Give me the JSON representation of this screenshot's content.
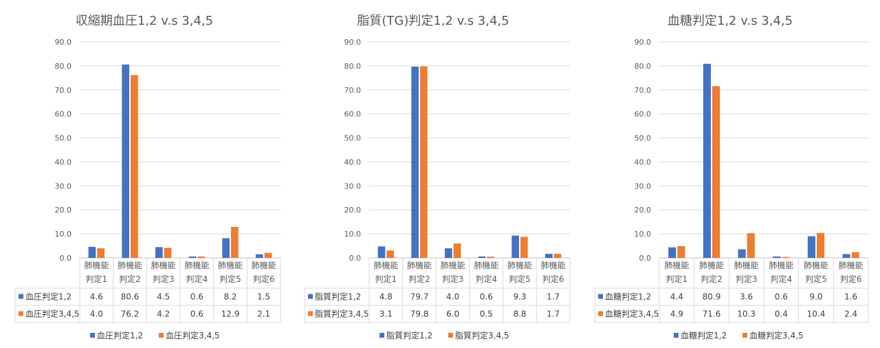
{
  "colors": {
    "series1": "#4472C4",
    "series2": "#ED7D31",
    "grid": "#D9D9D9",
    "text": "#595959"
  },
  "chart_data": [
    {
      "type": "bar",
      "title": "収縮期血圧1,2 v.s 3,4,5",
      "categories": [
        [
          "肺機能",
          "判定1"
        ],
        [
          "肺機能",
          "判定2"
        ],
        [
          "肺機能",
          "判定3"
        ],
        [
          "肺機能",
          "判定4"
        ],
        [
          "肺機能",
          "判定5"
        ],
        [
          "肺機能",
          "判定6"
        ]
      ],
      "ylim": [
        0,
        90
      ],
      "yticks": [
        "0.0",
        "10.0",
        "20.0",
        "30.0",
        "40.0",
        "50.0",
        "60.0",
        "70.0",
        "80.0",
        "90.0"
      ],
      "grid": true,
      "legend": "bottom",
      "data_table": true,
      "series": [
        {
          "name": "血圧判定1,2",
          "values": [
            4.6,
            80.6,
            4.5,
            0.6,
            8.2,
            1.5
          ],
          "labels": [
            "4.6",
            "80.6",
            "4.5",
            "0.6",
            "8.2",
            "1.5"
          ]
        },
        {
          "name": "血圧判定3,4,5",
          "values": [
            4.0,
            76.2,
            4.2,
            0.6,
            12.9,
            2.1
          ],
          "labels": [
            "4.0",
            "76.2",
            "4.2",
            "0.6",
            "12.9",
            "2.1"
          ]
        }
      ]
    },
    {
      "type": "bar",
      "title": "脂質(TG)判定1,2 v.s 3,4,5",
      "categories": [
        [
          "肺機能",
          "判定1"
        ],
        [
          "肺機能",
          "判定2"
        ],
        [
          "肺機能",
          "判定3"
        ],
        [
          "肺機能",
          "判定4"
        ],
        [
          "肺機能",
          "判定5"
        ],
        [
          "肺機能",
          "判定6"
        ]
      ],
      "ylim": [
        0,
        90
      ],
      "yticks": [
        "0.0",
        "10.0",
        "20.0",
        "30.0",
        "40.0",
        "50.0",
        "60.0",
        "70.0",
        "80.0",
        "90.0"
      ],
      "grid": true,
      "legend": "bottom",
      "data_table": true,
      "series": [
        {
          "name": "脂質判定1,2",
          "values": [
            4.8,
            79.7,
            4.0,
            0.6,
            9.3,
            1.7
          ],
          "labels": [
            "4.8",
            "79.7",
            "4.0",
            "0.6",
            "9.3",
            "1.7"
          ]
        },
        {
          "name": "脂質判定3,4,5",
          "values": [
            3.1,
            79.8,
            6.0,
            0.5,
            8.8,
            1.7
          ],
          "labels": [
            "3.1",
            "79.8",
            "6.0",
            "0.5",
            "8.8",
            "1.7"
          ]
        }
      ]
    },
    {
      "type": "bar",
      "title": "血糖判定1,2 v.s 3,4,5",
      "categories": [
        [
          "肺機能",
          "判定1"
        ],
        [
          "肺機能",
          "判定2"
        ],
        [
          "肺機能",
          "判定3"
        ],
        [
          "肺機能",
          "判定4"
        ],
        [
          "肺機能",
          "判定5"
        ],
        [
          "肺機能",
          "判定6"
        ]
      ],
      "ylim": [
        0,
        90
      ],
      "yticks": [
        "0.0",
        "10.0",
        "20.0",
        "30.0",
        "40.0",
        "50.0",
        "60.0",
        "70.0",
        "80.0",
        "90.0"
      ],
      "grid": true,
      "legend": "bottom",
      "data_table": true,
      "series": [
        {
          "name": "血糖判定1,2",
          "values": [
            4.4,
            80.9,
            3.6,
            0.6,
            9.0,
            1.6
          ],
          "labels": [
            "4.4",
            "80.9",
            "3.6",
            "0.6",
            "9.0",
            "1.6"
          ]
        },
        {
          "name": "血糖判定3,4,5",
          "values": [
            4.9,
            71.6,
            10.3,
            0.4,
            10.4,
            2.4
          ],
          "labels": [
            "4.9",
            "71.6",
            "10.3",
            "0.4",
            "10.4",
            "2.4"
          ]
        }
      ]
    }
  ]
}
